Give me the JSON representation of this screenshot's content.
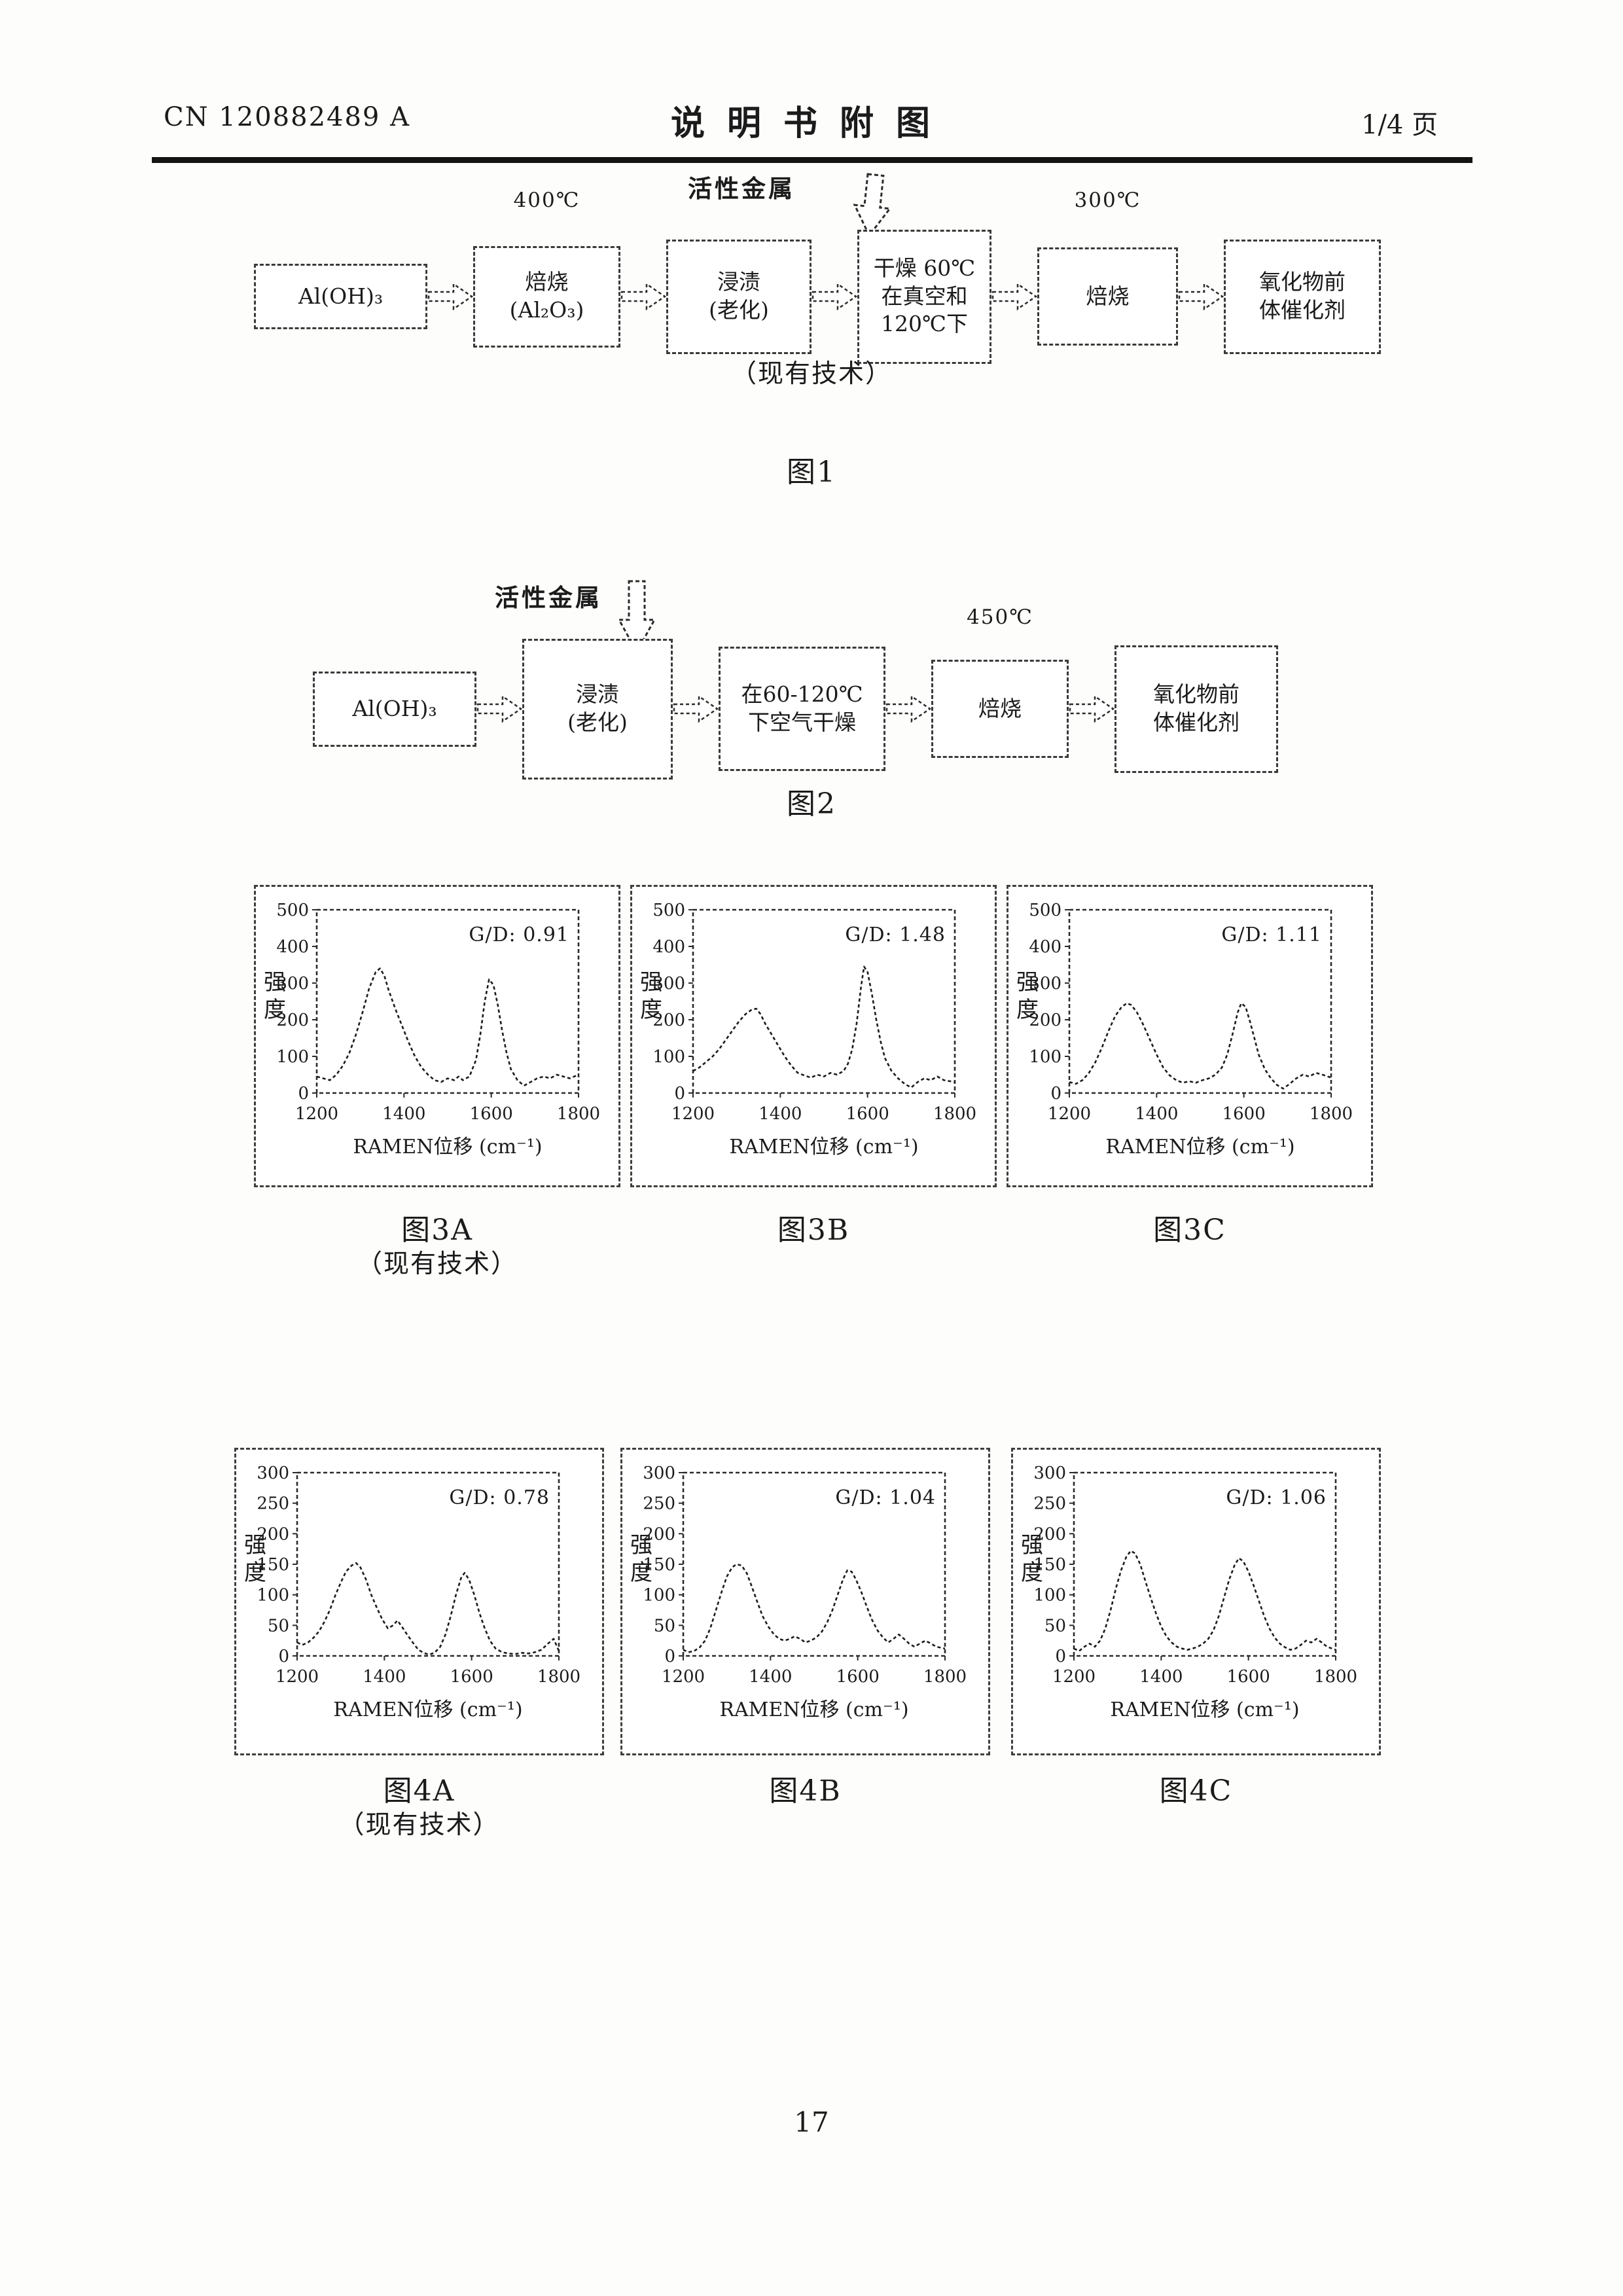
{
  "header": {
    "doc_number": "CN 120882489 A",
    "title": "说明书附图",
    "page_indicator": "1/4 页"
  },
  "figure1": {
    "caption": "图1",
    "note": "（现有技术）",
    "boxes": [
      "Al(OH)₃",
      "焙烧\n(Al₂O₃)",
      "浸渍\n(老化)",
      "干燥 60℃\n在真空和\n120℃下",
      "焙烧",
      "氧化物前\n体催化剂"
    ],
    "annotations": {
      "calcine1_temp": "400℃",
      "active_metal": "活性金属",
      "calcine2_temp": "300℃"
    }
  },
  "figure2": {
    "caption": "图2",
    "boxes": [
      "Al(OH)₃",
      "浸渍\n(老化)",
      "在60-120℃\n下空气干燥",
      "焙烧",
      "氧化物前\n体催化剂"
    ],
    "annotations": {
      "active_metal": "活性金属",
      "calcine_temp": "450℃"
    }
  },
  "figure3": {
    "captions": [
      "图3A",
      "图3B",
      "图3C"
    ],
    "note": "（现有技术）"
  },
  "figure4": {
    "captions": [
      "图4A",
      "图4B",
      "图4C"
    ],
    "note": "（现有技术）"
  },
  "page_number": "17",
  "chart_data": [
    {
      "type": "line",
      "name": "figure-3A-raman",
      "annotation": "G/D: 0.91",
      "xlabel": "RAMEN位移 (cm⁻¹)",
      "ylabel": "强度",
      "xlim": [
        1200,
        1800
      ],
      "ylim": [
        0,
        500
      ],
      "xticks": [
        1200,
        1400,
        1600,
        1800
      ],
      "yticks": [
        0,
        100,
        200,
        300,
        400,
        500
      ],
      "peaks": {
        "D_band": [
          1345,
          340
        ],
        "G_band": [
          1595,
          310
        ]
      },
      "points": [
        [
          1200,
          45
        ],
        [
          1215,
          40
        ],
        [
          1230,
          35
        ],
        [
          1245,
          50
        ],
        [
          1260,
          75
        ],
        [
          1275,
          110
        ],
        [
          1290,
          160
        ],
        [
          1305,
          220
        ],
        [
          1320,
          285
        ],
        [
          1335,
          330
        ],
        [
          1345,
          340
        ],
        [
          1355,
          320
        ],
        [
          1365,
          280
        ],
        [
          1380,
          230
        ],
        [
          1395,
          185
        ],
        [
          1410,
          140
        ],
        [
          1425,
          100
        ],
        [
          1440,
          70
        ],
        [
          1455,
          50
        ],
        [
          1470,
          35
        ],
        [
          1485,
          30
        ],
        [
          1500,
          40
        ],
        [
          1515,
          35
        ],
        [
          1525,
          45
        ],
        [
          1535,
          35
        ],
        [
          1550,
          45
        ],
        [
          1565,
          90
        ],
        [
          1575,
          160
        ],
        [
          1585,
          250
        ],
        [
          1595,
          310
        ],
        [
          1605,
          295
        ],
        [
          1615,
          240
        ],
        [
          1625,
          170
        ],
        [
          1635,
          110
        ],
        [
          1645,
          65
        ],
        [
          1660,
          35
        ],
        [
          1675,
          20
        ],
        [
          1690,
          30
        ],
        [
          1705,
          40
        ],
        [
          1720,
          45
        ],
        [
          1735,
          40
        ],
        [
          1750,
          50
        ],
        [
          1765,
          45
        ],
        [
          1780,
          40
        ],
        [
          1800,
          50
        ]
      ]
    },
    {
      "type": "line",
      "name": "figure-3B-raman",
      "annotation": "G/D: 1.48",
      "xlabel": "RAMEN位移 (cm⁻¹)",
      "ylabel": "强度",
      "xlim": [
        1200,
        1800
      ],
      "ylim": [
        0,
        500
      ],
      "xticks": [
        1200,
        1400,
        1600,
        1800
      ],
      "yticks": [
        0,
        100,
        200,
        300,
        400,
        500
      ],
      "peaks": {
        "D_band": [
          1345,
          230
        ],
        "G_band": [
          1592,
          345
        ]
      },
      "points": [
        [
          1200,
          60
        ],
        [
          1215,
          70
        ],
        [
          1230,
          85
        ],
        [
          1245,
          100
        ],
        [
          1260,
          120
        ],
        [
          1275,
          145
        ],
        [
          1290,
          170
        ],
        [
          1305,
          195
        ],
        [
          1320,
          215
        ],
        [
          1335,
          228
        ],
        [
          1345,
          230
        ],
        [
          1355,
          215
        ],
        [
          1365,
          190
        ],
        [
          1380,
          160
        ],
        [
          1395,
          130
        ],
        [
          1410,
          100
        ],
        [
          1425,
          75
        ],
        [
          1440,
          55
        ],
        [
          1455,
          48
        ],
        [
          1470,
          42
        ],
        [
          1485,
          50
        ],
        [
          1500,
          45
        ],
        [
          1515,
          55
        ],
        [
          1530,
          50
        ],
        [
          1545,
          60
        ],
        [
          1555,
          80
        ],
        [
          1565,
          120
        ],
        [
          1575,
          190
        ],
        [
          1585,
          290
        ],
        [
          1592,
          345
        ],
        [
          1600,
          330
        ],
        [
          1610,
          270
        ],
        [
          1620,
          200
        ],
        [
          1630,
          140
        ],
        [
          1640,
          95
        ],
        [
          1655,
          60
        ],
        [
          1670,
          40
        ],
        [
          1685,
          25
        ],
        [
          1700,
          15
        ],
        [
          1715,
          30
        ],
        [
          1730,
          40
        ],
        [
          1745,
          35
        ],
        [
          1760,
          45
        ],
        [
          1775,
          35
        ],
        [
          1800,
          30
        ]
      ]
    },
    {
      "type": "line",
      "name": "figure-3C-raman",
      "annotation": "G/D: 1.11",
      "xlabel": "RAMEN位移 (cm⁻¹)",
      "ylabel": "强度",
      "xlim": [
        1200,
        1800
      ],
      "ylim": [
        0,
        500
      ],
      "xticks": [
        1200,
        1400,
        1600,
        1800
      ],
      "yticks": [
        0,
        100,
        200,
        300,
        400,
        500
      ],
      "peaks": {
        "D_band": [
          1332,
          245
        ],
        "G_band": [
          1594,
          245
        ]
      },
      "points": [
        [
          1200,
          30
        ],
        [
          1215,
          25
        ],
        [
          1230,
          35
        ],
        [
          1245,
          55
        ],
        [
          1260,
          85
        ],
        [
          1275,
          125
        ],
        [
          1290,
          170
        ],
        [
          1305,
          210
        ],
        [
          1320,
          235
        ],
        [
          1332,
          245
        ],
        [
          1342,
          240
        ],
        [
          1355,
          220
        ],
        [
          1370,
          185
        ],
        [
          1385,
          145
        ],
        [
          1400,
          105
        ],
        [
          1415,
          70
        ],
        [
          1430,
          48
        ],
        [
          1445,
          35
        ],
        [
          1460,
          28
        ],
        [
          1475,
          32
        ],
        [
          1490,
          28
        ],
        [
          1505,
          35
        ],
        [
          1520,
          40
        ],
        [
          1535,
          50
        ],
        [
          1550,
          70
        ],
        [
          1562,
          105
        ],
        [
          1574,
          160
        ],
        [
          1586,
          220
        ],
        [
          1594,
          245
        ],
        [
          1604,
          235
        ],
        [
          1614,
          195
        ],
        [
          1624,
          150
        ],
        [
          1634,
          105
        ],
        [
          1648,
          65
        ],
        [
          1662,
          40
        ],
        [
          1676,
          22
        ],
        [
          1690,
          12
        ],
        [
          1705,
          25
        ],
        [
          1720,
          40
        ],
        [
          1735,
          50
        ],
        [
          1750,
          45
        ],
        [
          1765,
          55
        ],
        [
          1780,
          50
        ],
        [
          1800,
          42
        ]
      ]
    },
    {
      "type": "line",
      "name": "figure-4A-raman",
      "annotation": "G/D: 0.78",
      "xlabel": "RAMEN位移 (cm⁻¹)",
      "ylabel": "强度",
      "xlim": [
        1200,
        1800
      ],
      "ylim": [
        0,
        300
      ],
      "xticks": [
        1200,
        1400,
        1600,
        1800
      ],
      "yticks": [
        0,
        50,
        100,
        150,
        200,
        250,
        300
      ],
      "peaks": {
        "D_band": [
          1335,
          152
        ],
        "G_band": [
          1584,
          136
        ]
      },
      "points": [
        [
          1200,
          22
        ],
        [
          1212,
          18
        ],
        [
          1225,
          22
        ],
        [
          1238,
          30
        ],
        [
          1250,
          40
        ],
        [
          1262,
          55
        ],
        [
          1275,
          75
        ],
        [
          1288,
          100
        ],
        [
          1300,
          120
        ],
        [
          1312,
          138
        ],
        [
          1325,
          148
        ],
        [
          1335,
          152
        ],
        [
          1345,
          145
        ],
        [
          1358,
          125
        ],
        [
          1370,
          100
        ],
        [
          1382,
          80
        ],
        [
          1395,
          60
        ],
        [
          1408,
          45
        ],
        [
          1420,
          50
        ],
        [
          1430,
          58
        ],
        [
          1440,
          48
        ],
        [
          1452,
          35
        ],
        [
          1465,
          22
        ],
        [
          1478,
          10
        ],
        [
          1490,
          5
        ],
        [
          1502,
          2
        ],
        [
          1515,
          5
        ],
        [
          1528,
          15
        ],
        [
          1540,
          35
        ],
        [
          1552,
          65
        ],
        [
          1564,
          100
        ],
        [
          1576,
          128
        ],
        [
          1584,
          136
        ],
        [
          1594,
          125
        ],
        [
          1606,
          100
        ],
        [
          1618,
          70
        ],
        [
          1630,
          45
        ],
        [
          1642,
          25
        ],
        [
          1655,
          12
        ],
        [
          1670,
          6
        ],
        [
          1685,
          4
        ],
        [
          1700,
          3
        ],
        [
          1715,
          5
        ],
        [
          1730,
          4
        ],
        [
          1745,
          6
        ],
        [
          1760,
          10
        ],
        [
          1775,
          20
        ],
        [
          1788,
          28
        ],
        [
          1800,
          8
        ]
      ]
    },
    {
      "type": "line",
      "name": "figure-4B-raman",
      "annotation": "G/D: 1.04",
      "xlabel": "RAMEN位移 (cm⁻¹)",
      "ylabel": "强度",
      "xlim": [
        1200,
        1800
      ],
      "ylim": [
        0,
        300
      ],
      "xticks": [
        1200,
        1400,
        1600,
        1800
      ],
      "yticks": [
        0,
        50,
        100,
        150,
        200,
        250,
        300
      ],
      "peaks": {
        "D_band": [
          1322,
          150
        ],
        "G_band": [
          1576,
          140
        ]
      },
      "points": [
        [
          1200,
          10
        ],
        [
          1212,
          6
        ],
        [
          1225,
          8
        ],
        [
          1238,
          14
        ],
        [
          1250,
          25
        ],
        [
          1262,
          45
        ],
        [
          1275,
          75
        ],
        [
          1288,
          105
        ],
        [
          1300,
          130
        ],
        [
          1312,
          145
        ],
        [
          1322,
          150
        ],
        [
          1334,
          148
        ],
        [
          1346,
          135
        ],
        [
          1358,
          112
        ],
        [
          1370,
          88
        ],
        [
          1382,
          65
        ],
        [
          1395,
          48
        ],
        [
          1408,
          35
        ],
        [
          1420,
          28
        ],
        [
          1432,
          25
        ],
        [
          1445,
          28
        ],
        [
          1455,
          32
        ],
        [
          1468,
          28
        ],
        [
          1480,
          22
        ],
        [
          1492,
          25
        ],
        [
          1505,
          30
        ],
        [
          1518,
          40
        ],
        [
          1530,
          55
        ],
        [
          1542,
          75
        ],
        [
          1554,
          100
        ],
        [
          1566,
          125
        ],
        [
          1576,
          140
        ],
        [
          1586,
          138
        ],
        [
          1596,
          125
        ],
        [
          1608,
          105
        ],
        [
          1620,
          82
        ],
        [
          1632,
          60
        ],
        [
          1645,
          42
        ],
        [
          1658,
          30
        ],
        [
          1670,
          22
        ],
        [
          1682,
          28
        ],
        [
          1694,
          35
        ],
        [
          1706,
          28
        ],
        [
          1718,
          20
        ],
        [
          1730,
          15
        ],
        [
          1742,
          20
        ],
        [
          1755,
          25
        ],
        [
          1768,
          20
        ],
        [
          1780,
          15
        ],
        [
          1800,
          12
        ]
      ]
    },
    {
      "type": "line",
      "name": "figure-4C-raman",
      "annotation": "G/D: 1.06",
      "xlabel": "RAMEN位移 (cm⁻¹)",
      "ylabel": "强度",
      "xlim": [
        1200,
        1800
      ],
      "ylim": [
        0,
        300
      ],
      "xticks": [
        1200,
        1400,
        1600,
        1800
      ],
      "yticks": [
        0,
        50,
        100,
        150,
        200,
        250,
        300
      ],
      "peaks": {
        "D_band": [
          1330,
          172
        ],
        "G_band": [
          1578,
          160
        ]
      },
      "points": [
        [
          1200,
          12
        ],
        [
          1212,
          8
        ],
        [
          1224,
          15
        ],
        [
          1236,
          20
        ],
        [
          1248,
          15
        ],
        [
          1260,
          25
        ],
        [
          1272,
          45
        ],
        [
          1284,
          75
        ],
        [
          1296,
          110
        ],
        [
          1308,
          140
        ],
        [
          1320,
          162
        ],
        [
          1330,
          172
        ],
        [
          1340,
          168
        ],
        [
          1352,
          150
        ],
        [
          1364,
          122
        ],
        [
          1376,
          95
        ],
        [
          1388,
          70
        ],
        [
          1400,
          48
        ],
        [
          1412,
          32
        ],
        [
          1424,
          22
        ],
        [
          1436,
          15
        ],
        [
          1448,
          12
        ],
        [
          1460,
          10
        ],
        [
          1472,
          12
        ],
        [
          1484,
          15
        ],
        [
          1496,
          20
        ],
        [
          1508,
          28
        ],
        [
          1520,
          42
        ],
        [
          1532,
          65
        ],
        [
          1544,
          95
        ],
        [
          1556,
          125
        ],
        [
          1568,
          148
        ],
        [
          1578,
          160
        ],
        [
          1588,
          155
        ],
        [
          1600,
          138
        ],
        [
          1612,
          115
        ],
        [
          1624,
          90
        ],
        [
          1636,
          65
        ],
        [
          1648,
          45
        ],
        [
          1660,
          30
        ],
        [
          1672,
          20
        ],
        [
          1684,
          14
        ],
        [
          1696,
          10
        ],
        [
          1708,
          12
        ],
        [
          1720,
          18
        ],
        [
          1732,
          25
        ],
        [
          1744,
          22
        ],
        [
          1756,
          28
        ],
        [
          1768,
          22
        ],
        [
          1780,
          15
        ],
        [
          1800,
          10
        ]
      ]
    }
  ]
}
